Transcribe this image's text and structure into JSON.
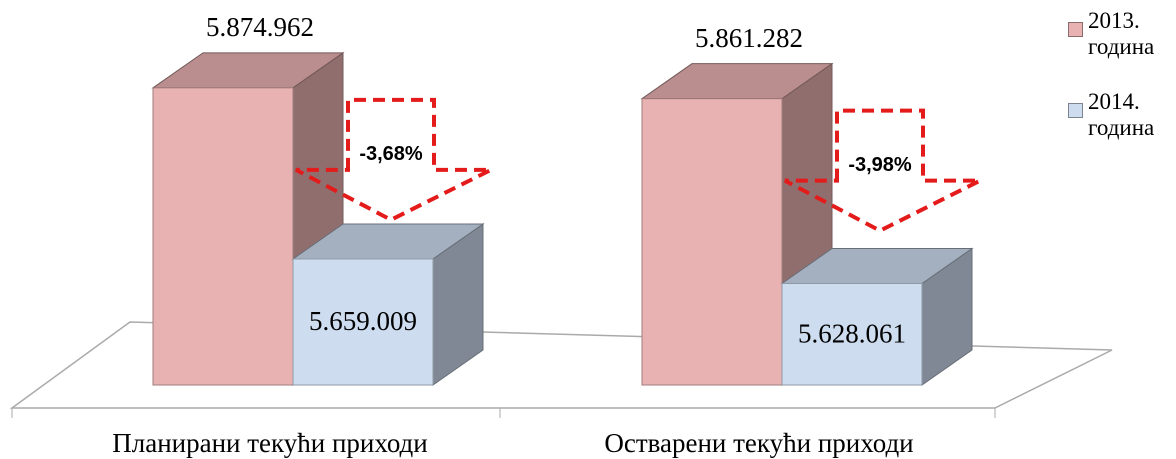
{
  "chart_data": {
    "type": "bar3d",
    "categories": [
      "Планирани текући приходи",
      "Остварени текући приходи"
    ],
    "series": [
      {
        "name": "2013. година",
        "color": "#e8b2b2",
        "values": [
          5874962,
          5861282
        ],
        "value_labels": [
          "5.874.962",
          "5.861.282"
        ]
      },
      {
        "name": "2014. година",
        "color": "#cddcef",
        "values": [
          5659009,
          5628061
        ],
        "value_labels": [
          "5.659.009",
          "5.628.061"
        ]
      }
    ],
    "ylim": [
      5500000,
      5900000
    ],
    "annotations": [
      "-3,68%",
      "-3,98%"
    ]
  }
}
